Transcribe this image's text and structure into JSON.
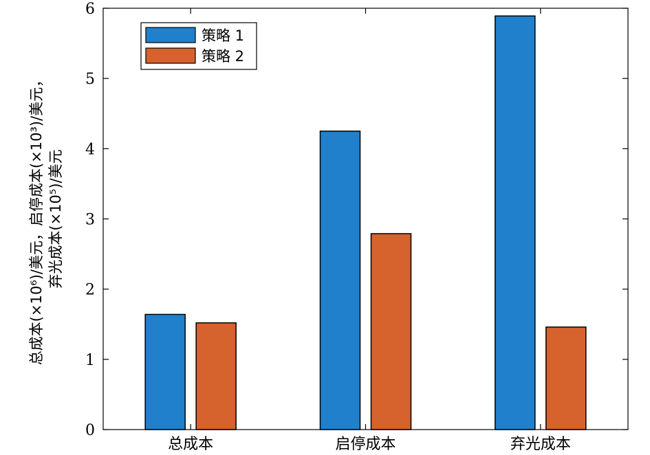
{
  "chart_data": {
    "type": "bar",
    "categories": [
      "总成本",
      "启停成本",
      "弃光成本"
    ],
    "series": [
      {
        "name": "策略 1",
        "color": "#2080cc",
        "values": [
          1.64,
          4.25,
          5.89
        ]
      },
      {
        "name": "策略 2",
        "color": "#d6622e",
        "values": [
          1.52,
          2.79,
          1.46
        ]
      }
    ],
    "ylabel_lines": [
      "总成本(×10⁶)/美元，启停成本(×10³)/美元，",
      "弃光成本(×10⁵)/美元"
    ],
    "ylim": [
      0,
      6
    ],
    "yticks": [
      0,
      1,
      2,
      3,
      4,
      5,
      6
    ],
    "grid": false,
    "legend_position": "top-left"
  }
}
